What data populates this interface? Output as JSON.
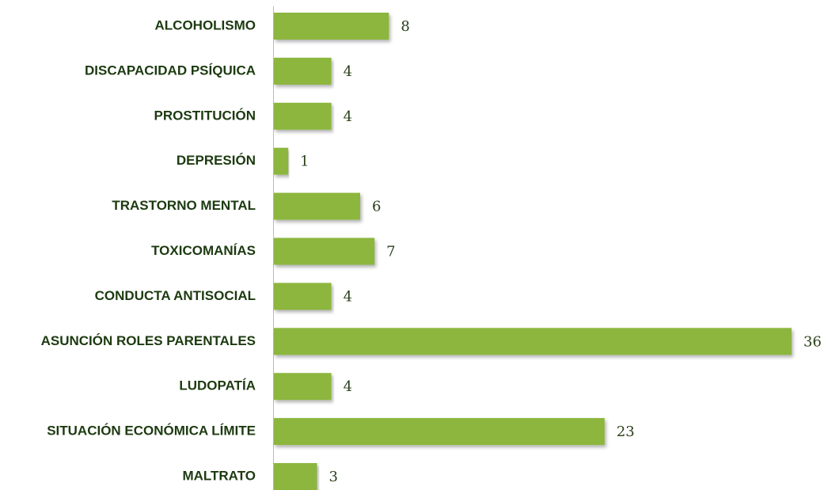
{
  "chart_data": {
    "type": "hbar",
    "categories": [
      "ALCOHOLISMO",
      "DISCAPACIDAD PSÍQUICA",
      "PROSTITUCIÓN",
      "DEPRESIÓN",
      "TRASTORNO MENTAL",
      "TOXICOMANÍAS",
      "CONDUCTA ANTISOCIAL",
      "ASUNCIÓN ROLES PARENTALES",
      "LUDOPATÍA",
      "SITUACIÓN ECONÓMICA LÍMITE",
      "MALTRATO"
    ],
    "values": [
      8,
      4,
      4,
      1,
      6,
      7,
      4,
      36,
      4,
      23,
      3
    ],
    "color": "#8cb63c"
  }
}
